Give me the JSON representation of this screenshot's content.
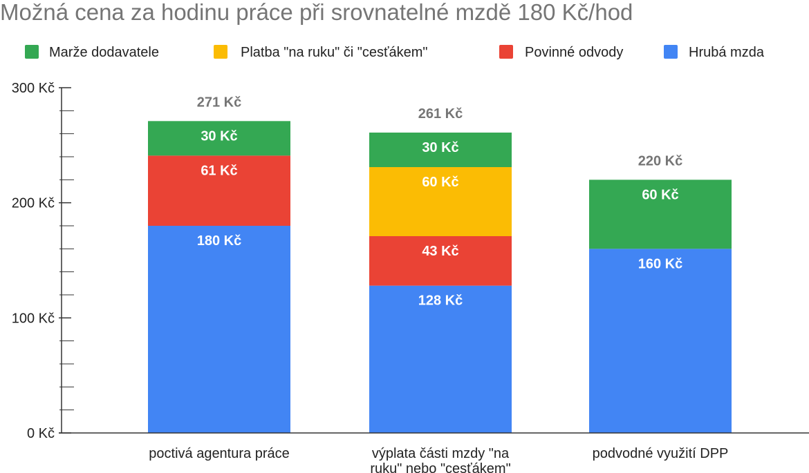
{
  "chart_data": {
    "type": "bar",
    "stacked": true,
    "title": "Možná cena za hodinu práce při srovnatelné mzdě 180 Kč/hod",
    "xlabel": "",
    "ylabel": "",
    "ylim": [
      0,
      300
    ],
    "yticks": [
      0,
      100,
      200,
      300
    ],
    "ytick_labels": [
      "0 Kč",
      "100 Kč",
      "200 Kč",
      "300 Kč"
    ],
    "grid": false,
    "legend_position": "top",
    "categories": [
      [
        "poctivá agentura práce"
      ],
      [
        "výplata části mzdy \"na",
        "ruku\" nebo \"cesťákem\""
      ],
      [
        "podvodné využití DPP"
      ]
    ],
    "legend": [
      {
        "name": "Marže dodavatele",
        "color": "#34a853"
      },
      {
        "name": "Platba \"na ruku\" či \"cesťákem\"",
        "color": "#fbbc04"
      },
      {
        "name": "Povinné odvody",
        "color": "#ea4335"
      },
      {
        "name": "Hrubá mzda",
        "color": "#4285f4"
      }
    ],
    "series": [
      {
        "name": "Hrubá mzda",
        "color": "#4285f4",
        "values": [
          180,
          128,
          160
        ],
        "labels": [
          "180 Kč",
          "128 Kč",
          "160 Kč"
        ]
      },
      {
        "name": "Povinné odvody",
        "color": "#ea4335",
        "values": [
          61,
          43,
          0
        ],
        "labels": [
          "61 Kč",
          "43 Kč",
          ""
        ]
      },
      {
        "name": "Platba \"na ruku\" či \"cesťákem\"",
        "color": "#fbbc04",
        "values": [
          0,
          60,
          0
        ],
        "labels": [
          "",
          "60 Kč",
          ""
        ]
      },
      {
        "name": "Marže dodavatele",
        "color": "#34a853",
        "values": [
          30,
          30,
          60
        ],
        "labels": [
          "30 Kč",
          "30 Kč",
          "60 Kč"
        ]
      }
    ],
    "totals": [
      271,
      261,
      220
    ],
    "total_labels": [
      "271 Kč",
      "261 Kč",
      "220 Kč"
    ]
  }
}
